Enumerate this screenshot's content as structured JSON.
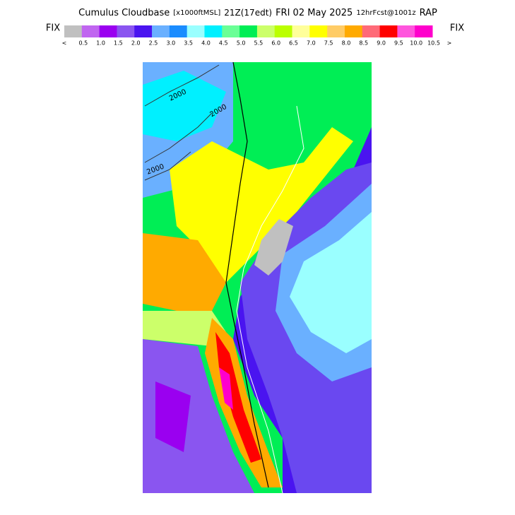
{
  "header": {
    "title": [
      "Cumulus Cloudbase",
      "[x1000ftMSL]",
      "21Z(17edt)",
      "FRI 02 May 2025",
      "12hrFcst@1001z",
      "RAP"
    ]
  },
  "legend": {
    "left": "FIX",
    "right": "FIX",
    "colors": [
      "#c0c0c0",
      "#c066f0",
      "#9a00f0",
      "#8a55f0",
      "#4a14f0",
      "#6ab0ff",
      "#1a8cff",
      "#9affff",
      "#00f0ff",
      "#6aff96",
      "#00ee55",
      "#ccff6a",
      "#bbff00",
      "#ffff9a",
      "#ffff00",
      "#ffcc66",
      "#ffaa00",
      "#ff6a78",
      "#ff0000",
      "#ff55dd",
      "#ff00cc"
    ],
    "labels": [
      "<",
      "0.5",
      "1.0",
      "1.5",
      "2.0",
      "2.5",
      "3.0",
      "3.5",
      "4.0",
      "4.5",
      "5.0",
      "5.5",
      "6.0",
      "6.5",
      "7.0",
      "7.5",
      "8.0",
      "8.5",
      "9.0",
      "9.5",
      "10.0",
      "10.5",
      ">"
    ]
  },
  "map": {
    "contours": [
      "2000",
      "2000",
      "2000"
    ]
  }
}
